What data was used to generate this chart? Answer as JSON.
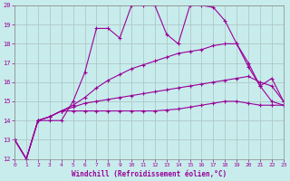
{
  "xlabel": "Windchill (Refroidissement éolien,°C)",
  "bg_color": "#c8ecec",
  "grid_color": "#b0c8c8",
  "line_color": "#990099",
  "xmin": 0,
  "xmax": 23,
  "ymin": 12,
  "ymax": 20,
  "series": [
    [
      13,
      12,
      14,
      14,
      14,
      15,
      16.5,
      18.8,
      18.8,
      18.3,
      20,
      20,
      20,
      18.5,
      18,
      20,
      20,
      19.9,
      19.2,
      18,
      16.8,
      15.8,
      16.2,
      15
    ],
    [
      13,
      12,
      14,
      14.2,
      14.5,
      14.8,
      15.2,
      15.7,
      16.1,
      16.4,
      16.7,
      16.9,
      17.1,
      17.3,
      17.5,
      17.6,
      17.7,
      17.9,
      18.0,
      18.0,
      17.0,
      15.8,
      15.0,
      14.8
    ],
    [
      13,
      12,
      14,
      14.2,
      14.5,
      14.7,
      14.9,
      15.0,
      15.1,
      15.2,
      15.3,
      15.4,
      15.5,
      15.6,
      15.7,
      15.8,
      15.9,
      16.0,
      16.1,
      16.2,
      16.3,
      16.0,
      15.8,
      15.0
    ],
    [
      13,
      12,
      14,
      14.2,
      14.5,
      14.5,
      14.5,
      14.5,
      14.5,
      14.5,
      14.5,
      14.5,
      14.5,
      14.55,
      14.6,
      14.7,
      14.8,
      14.9,
      15.0,
      15.0,
      14.9,
      14.8,
      14.8,
      14.8
    ]
  ]
}
